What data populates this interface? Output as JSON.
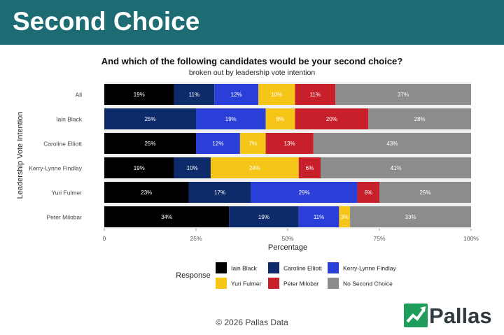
{
  "banner": {
    "title": "Second Choice"
  },
  "footer": {
    "copyright": "© 2026 Pallas Data"
  },
  "logo": {
    "text": "Pallas",
    "icon": "pallas-chart-arrow-icon",
    "color": "#1e9e5a"
  },
  "colors": {
    "banner": "#1d6b73",
    "Iain Black": "#000000",
    "Caroline Elliott": "#0d2b6b",
    "Kerry-Lynne Findlay": "#2a3fd8",
    "Yuri Fulmer": "#f5c518",
    "Peter Milobar": "#c8202b",
    "No Second Choice": "#8c8c8c"
  },
  "chart_data": {
    "type": "bar",
    "orientation": "horizontal",
    "stacked": true,
    "title": "And which of the following candidates would be your second choice?",
    "subtitle": "broken out by leadership vote intention",
    "xlabel": "Percentage",
    "ylabel": "Leadership Vote Intention",
    "xlim": [
      0,
      100
    ],
    "x_ticks": [
      "0",
      "25%",
      "50%",
      "75%",
      "100%"
    ],
    "categories": [
      "All",
      "Iain Black",
      "Caroline Elliott",
      "Kerry-Lynne Findlay",
      "Yuri Fulmer",
      "Peter Milobar"
    ],
    "legend_title": "Response",
    "legend_position": "bottom",
    "series": [
      {
        "name": "Iain Black",
        "values": [
          19,
          null,
          25,
          19,
          23,
          34
        ],
        "labels": [
          "19%",
          "",
          "25%",
          "19%",
          "23%",
          "34%"
        ]
      },
      {
        "name": "Caroline Elliott",
        "values": [
          11,
          25,
          null,
          10,
          17,
          19
        ],
        "labels": [
          "11%",
          "25%",
          "",
          "10%",
          "17%",
          "19%"
        ]
      },
      {
        "name": "Kerry-Lynne Findlay",
        "values": [
          12,
          19,
          12,
          null,
          29,
          11
        ],
        "labels": [
          "12%",
          "19%",
          "12%",
          "",
          "29%",
          "11%"
        ]
      },
      {
        "name": "Yuri Fulmer",
        "values": [
          10,
          8,
          7,
          24,
          null,
          3
        ],
        "labels": [
          "10%",
          "8%",
          "7%",
          "24%",
          "",
          "3%"
        ]
      },
      {
        "name": "Peter Milobar",
        "values": [
          11,
          20,
          13,
          6,
          6,
          null
        ],
        "labels": [
          "11%",
          "20%",
          "13%",
          "6%",
          "6%",
          ""
        ]
      },
      {
        "name": "No Second Choice",
        "values": [
          37,
          28,
          43,
          41,
          25,
          33
        ],
        "labels": [
          "37%",
          "28%",
          "43%",
          "41%",
          "25%",
          "33%"
        ]
      }
    ]
  }
}
